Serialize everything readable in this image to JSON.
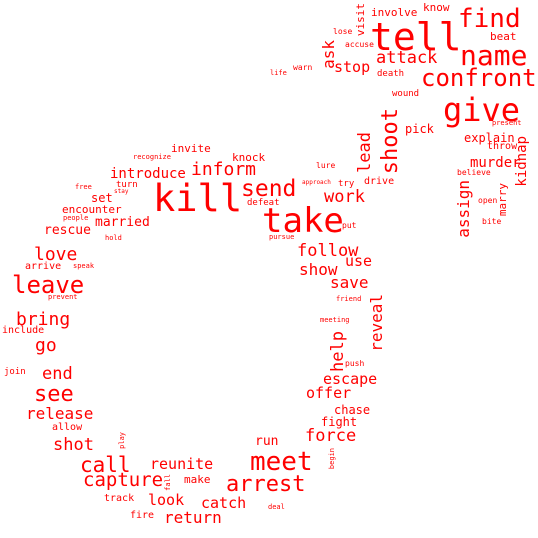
{
  "color": "#ff0000",
  "words": [
    "tell",
    "find",
    "name",
    "confront",
    "give",
    "kill",
    "take",
    "meet",
    "shoot",
    "send",
    "inform",
    "leave",
    "arrest",
    "attack",
    "capture",
    "call",
    "see",
    "follow",
    "work",
    "reveal",
    "help",
    "love",
    "bring",
    "show",
    "save",
    "escape",
    "force",
    "reunite",
    "assign",
    "lead",
    "kidnap",
    "end",
    "release",
    "go",
    "shot",
    "return",
    "catch",
    "look",
    "offer",
    "use",
    "ask",
    "stop",
    "introduce",
    "murder",
    "rescue",
    "married",
    "explain",
    "pick",
    "involve",
    "visit",
    "know",
    "beat",
    "throw",
    "marry",
    "knock",
    "invite",
    "set",
    "encounter",
    "chase",
    "fight",
    "run",
    "make",
    "track",
    "fire",
    "allow",
    "arrive",
    "include",
    "join",
    "drive",
    "try",
    "defeat",
    "turn",
    "wound",
    "death",
    "accuse",
    "lose",
    "warn",
    "life",
    "present",
    "believe",
    "open",
    "bite",
    "lure",
    "approach",
    "recognize",
    "free",
    "stay",
    "people",
    "hold",
    "speak",
    "prevent",
    "put",
    "pursue",
    "friend",
    "meeting",
    "push",
    "play",
    "fall",
    "begin",
    "deal"
  ]
}
